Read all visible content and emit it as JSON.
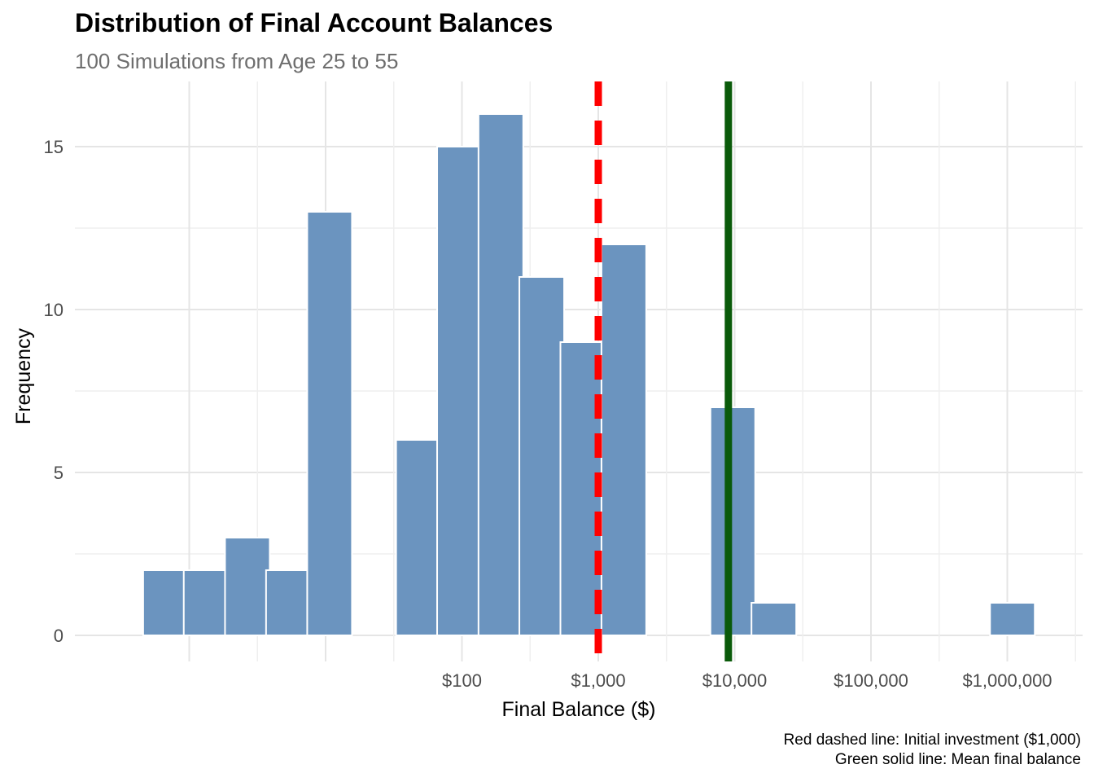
{
  "chart_data": {
    "type": "bar",
    "title": "Distribution of Final Account Balances",
    "subtitle": "100 Simulations from Age 25 to 55",
    "xlabel": "Final Balance ($)",
    "ylabel": "Frequency",
    "x_scale": "log10",
    "x_tick_values": [
      100,
      1000,
      10000,
      100000,
      1000000
    ],
    "x_tick_labels": [
      "$100",
      "$1,000",
      "$10,000",
      "$100,000",
      "$1,000,000"
    ],
    "y_ticks": [
      0,
      5,
      10,
      15
    ],
    "ylim": [
      0,
      16.5
    ],
    "grid": true,
    "bins": [
      {
        "center": 0.67,
        "count": 2
      },
      {
        "center": 1.33,
        "count": 2
      },
      {
        "center": 2.67,
        "count": 3
      },
      {
        "center": 5.34,
        "count": 2
      },
      {
        "center": 10.7,
        "count": 13
      },
      {
        "center": 48,
        "count": 6
      },
      {
        "center": 96,
        "count": 15
      },
      {
        "center": 193,
        "count": 16
      },
      {
        "center": 385,
        "count": 11
      },
      {
        "center": 770,
        "count": 9
      },
      {
        "center": 1540,
        "count": 12
      },
      {
        "center": 9700,
        "count": 7
      },
      {
        "center": 19400,
        "count": 1
      },
      {
        "center": 1090000,
        "count": 1
      }
    ],
    "reference_lines": [
      {
        "x": 1000,
        "color": "#ff0000",
        "style": "dashed"
      },
      {
        "x": 9000,
        "color": "#0a5a0a",
        "style": "solid"
      }
    ],
    "bar_color": "#6b94bf",
    "notes": [
      "Red dashed line: Initial investment ($1,000)",
      "Green solid line: Mean final balance"
    ]
  }
}
